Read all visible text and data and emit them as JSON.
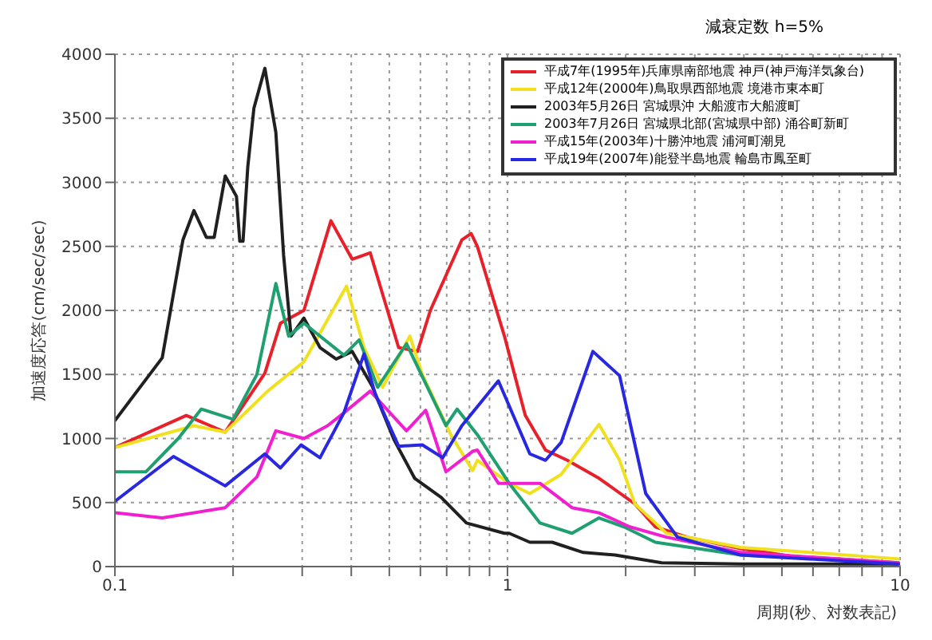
{
  "chart_data": {
    "type": "line",
    "subtitle": "減衰定数 h=5%",
    "xlabel": "周期(秒、対数表記)",
    "ylabel": "加速度応答(cm/sec/sec)",
    "log": "x",
    "grid": true,
    "legend": "top right",
    "marker": "none",
    "line_style": "solid",
    "xlim": [
      0.1,
      10
    ],
    "xticks": [
      0.1,
      {
        "value": 0.2,
        "label": null
      },
      {
        "value": 0.3,
        "label": null
      },
      {
        "value": 0.4,
        "label": null
      },
      {
        "value": 0.5,
        "label": null
      },
      {
        "value": 0.6,
        "label": null
      },
      {
        "value": 0.7,
        "label": null
      },
      {
        "value": 0.8,
        "label": null
      },
      {
        "value": 0.9,
        "label": null
      },
      1,
      {
        "value": 2,
        "label": null
      },
      {
        "value": 3,
        "label": null
      },
      {
        "value": 4,
        "label": null
      },
      {
        "value": 5,
        "label": null
      },
      {
        "value": 6,
        "label": null
      },
      {
        "value": 7,
        "label": null
      },
      {
        "value": 8,
        "label": null
      },
      {
        "value": 9,
        "label": null
      },
      10
    ],
    "ylim": [
      0,
      4000
    ],
    "yticks": [
      0,
      500,
      1000,
      1500,
      2000,
      2500,
      3000,
      3500,
      4000
    ],
    "series": [
      {
        "name": "平成7年(1995年)兵庫県南部地震 神戸(神戸海洋気象台)",
        "color": "#e8202a",
        "x": [
          0.1,
          0.152,
          0.191,
          0.241,
          0.264,
          0.303,
          0.355,
          0.402,
          0.447,
          0.528,
          0.59,
          0.636,
          0.765,
          0.808,
          0.838,
          0.982,
          1.11,
          1.25,
          1.42,
          1.71,
          2.11,
          2.38,
          2.87,
          3.93,
          5.32,
          9.9
        ],
        "values": [
          930,
          1180,
          1050,
          1510,
          1900,
          2000,
          2700,
          2400,
          2450,
          1710,
          1680,
          2000,
          2550,
          2600,
          2500,
          1800,
          1180,
          910,
          830,
          690,
          490,
          310,
          230,
          140,
          80,
          30
        ]
      },
      {
        "name": "平成12年(2000年)鳥取県西部地震 境港市東本町",
        "color": "#f0e020",
        "x": [
          0.1,
          0.159,
          0.191,
          0.245,
          0.303,
          0.389,
          0.431,
          0.481,
          0.564,
          0.607,
          0.717,
          0.815,
          0.838,
          1.01,
          1.14,
          1.37,
          1.71,
          1.93,
          2.11,
          2.54,
          3.93,
          9.9
        ],
        "values": [
          930,
          1100,
          1050,
          1370,
          1600,
          2190,
          1710,
          1400,
          1800,
          1500,
          1030,
          750,
          830,
          650,
          570,
          720,
          1110,
          830,
          490,
          260,
          150,
          60
        ]
      },
      {
        "name": "2003年5月26日 宮城県沖 大船渡市大船渡町",
        "color": "#202020",
        "x": [
          0.1,
          0.132,
          0.149,
          0.159,
          0.171,
          0.179,
          0.191,
          0.204,
          0.208,
          0.212,
          0.218,
          0.226,
          0.241,
          0.257,
          0.269,
          0.281,
          0.303,
          0.333,
          0.366,
          0.402,
          0.452,
          0.514,
          0.58,
          0.678,
          0.786,
          0.982,
          1.01,
          1.14,
          1.3,
          1.56,
          1.88,
          2.47,
          3.93,
          9.9
        ],
        "values": [
          1140,
          1630,
          2550,
          2780,
          2570,
          2570,
          3050,
          2890,
          2540,
          2540,
          3120,
          3580,
          3890,
          3390,
          2430,
          1800,
          1940,
          1710,
          1620,
          1680,
          1410,
          990,
          690,
          540,
          340,
          260,
          260,
          190,
          190,
          110,
          90,
          30,
          20,
          20
        ]
      },
      {
        "name": "2003年7月26日 宮城県北部(宮城県中部) 涌谷町新町",
        "color": "#20a070",
        "x": [
          0.1,
          0.12,
          0.145,
          0.166,
          0.2,
          0.23,
          0.257,
          0.277,
          0.303,
          0.383,
          0.419,
          0.467,
          0.553,
          0.697,
          0.744,
          0.838,
          1.01,
          1.21,
          1.46,
          1.71,
          1.98,
          2.38,
          3.93,
          9.9
        ],
        "values": [
          740,
          740,
          1000,
          1230,
          1150,
          1500,
          2210,
          1800,
          1900,
          1650,
          1770,
          1400,
          1740,
          1100,
          1230,
          1030,
          650,
          340,
          260,
          380,
          310,
          190,
          90,
          30
        ]
      },
      {
        "name": "平成15年(2003年)十勝沖地震 浦河町潮見",
        "color": "#f020d0",
        "x": [
          0.1,
          0.132,
          0.191,
          0.23,
          0.257,
          0.303,
          0.348,
          0.383,
          0.447,
          0.553,
          0.619,
          0.697,
          0.815,
          0.838,
          0.948,
          1.21,
          1.46,
          1.71,
          2.05,
          2.54,
          3.93,
          9.9
        ],
        "values": [
          420,
          380,
          460,
          700,
          1060,
          1000,
          1100,
          1200,
          1370,
          1060,
          1220,
          740,
          900,
          910,
          650,
          650,
          460,
          420,
          310,
          230,
          110,
          30
        ]
      },
      {
        "name": "平成19年(2007年)能登半島地震 輪島市鳳至町",
        "color": "#2828e0",
        "x": [
          0.1,
          0.141,
          0.191,
          0.241,
          0.264,
          0.298,
          0.333,
          0.383,
          0.431,
          0.46,
          0.528,
          0.607,
          0.684,
          0.765,
          0.948,
          1.14,
          1.25,
          1.37,
          1.65,
          1.93,
          2.25,
          2.71,
          3.93,
          9.9
        ],
        "values": [
          510,
          860,
          630,
          880,
          770,
          950,
          850,
          1200,
          1660,
          1350,
          940,
          950,
          850,
          1100,
          1450,
          880,
          830,
          970,
          1680,
          1490,
          570,
          230,
          90,
          20
        ]
      }
    ]
  }
}
